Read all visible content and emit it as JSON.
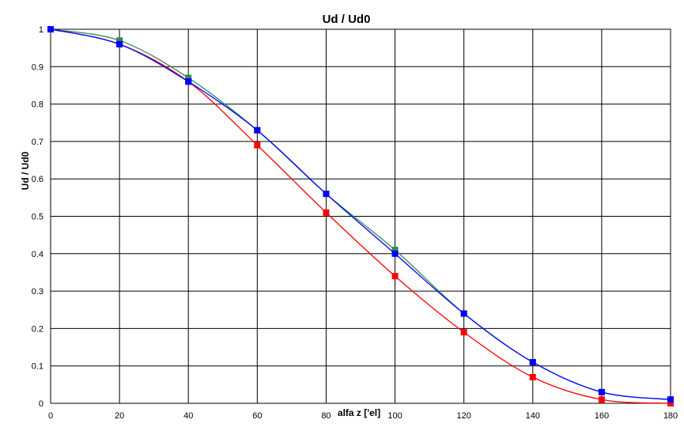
{
  "chart_data": {
    "type": "line",
    "title": "Ud / Ud0",
    "xlabel": "alfa z ['el]",
    "ylabel": "Ud / Ud0",
    "xlim": [
      0,
      180
    ],
    "ylim": [
      0,
      1
    ],
    "x_ticks": [
      0,
      20,
      40,
      60,
      80,
      100,
      120,
      140,
      160,
      180
    ],
    "y_ticks": [
      0,
      0.1,
      0.2,
      0.3,
      0.4,
      0.5,
      0.6,
      0.7,
      0.8,
      0.9,
      1
    ],
    "x_tick_labels": [
      "0",
      "20",
      "40",
      "60",
      "80",
      "100",
      "120",
      "140",
      "160",
      "180"
    ],
    "y_tick_labels": [
      "0",
      "0.1",
      "0.2",
      "0.3",
      "0.4",
      "0.5",
      "0.6",
      "0.7",
      "0.8",
      "0.9",
      "1"
    ],
    "grid": true,
    "legend": "none",
    "series": [
      {
        "color": "#2e8b57",
        "marker": "square",
        "x": [
          0,
          20,
          40,
          60,
          80,
          100,
          120,
          140,
          160,
          180
        ],
        "y": [
          1.0,
          0.97,
          0.87,
          0.73,
          0.56,
          0.41,
          0.24,
          0.11,
          0.03,
          0.01
        ]
      },
      {
        "color": "#ff0000",
        "marker": "square",
        "x": [
          0,
          20,
          40,
          60,
          80,
          100,
          120,
          140,
          160,
          180
        ],
        "y": [
          1.0,
          0.96,
          0.86,
          0.69,
          0.51,
          0.34,
          0.19,
          0.07,
          0.01,
          0.0
        ]
      },
      {
        "color": "#0000ff",
        "marker": "square",
        "x": [
          0,
          20,
          40,
          60,
          80,
          100,
          120,
          140,
          160,
          180
        ],
        "y": [
          1.0,
          0.96,
          0.86,
          0.73,
          0.56,
          0.4,
          0.24,
          0.11,
          0.03,
          0.01
        ]
      }
    ]
  }
}
